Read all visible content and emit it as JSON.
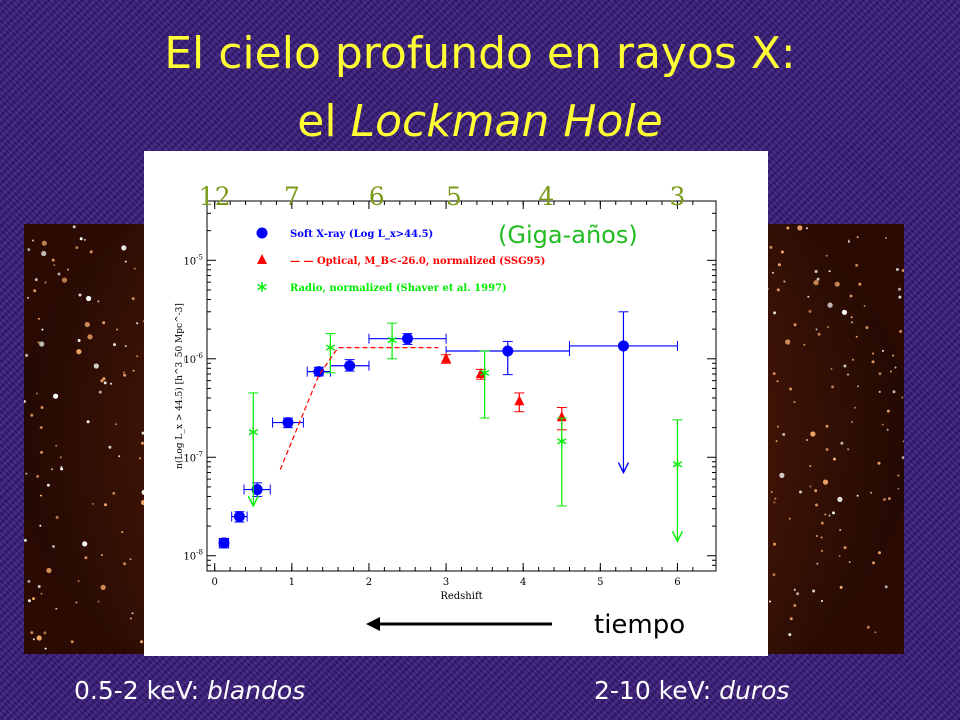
{
  "title": {
    "line1": "El cielo profundo en rayos X:",
    "line2_prefix": "el ",
    "line2_italic": "Lockman Hole"
  },
  "colors": {
    "title": "#ffff33",
    "background": "#3a1f7a",
    "soft": "#0000ff",
    "optical": "#ff0000",
    "radio": "#00ee00"
  },
  "bottom": {
    "left_prefix": "0.5-2 keV: ",
    "left_italic": "blandos",
    "right_prefix": "2-10 keV: ",
    "right_italic": "duros"
  },
  "chart_data": {
    "type": "scatter",
    "xlabel": "Redshift",
    "ylabel": "n(Log L_x > 44.5) [h^3_50 Mpc^-3]",
    "xlim": [
      -0.1,
      6.5
    ],
    "ylim": [
      7e-09,
      4e-05
    ],
    "yscale": "log",
    "x_ticks": [
      "0",
      "1",
      "2",
      "3",
      "4",
      "5",
      "6"
    ],
    "y_ticks": [
      "10^-8",
      "10^-7",
      "10^-6",
      "10^-5"
    ],
    "top_axis": {
      "label": "(Giga-años)",
      "ticks": [
        {
          "z": 0.0,
          "label": "12"
        },
        {
          "z": 1.0,
          "label": "7"
        },
        {
          "z": 2.1,
          "label": "6"
        },
        {
          "z": 3.1,
          "label": "5"
        },
        {
          "z": 4.3,
          "label": "4"
        },
        {
          "z": 6.0,
          "label": "3"
        }
      ]
    },
    "arrow_label": "tiempo",
    "legend": [
      {
        "marker": "circle",
        "color": "#0000ff",
        "label": "Soft X-ray (Log L_x>44.5)"
      },
      {
        "marker": "triangle",
        "color": "#ff0000",
        "label": "— — Optical, M_B<-26.0, normalized (SSG95)"
      },
      {
        "marker": "star",
        "color": "#00ee00",
        "label": "Radio, normalized (Shaver et al. 1997)"
      }
    ],
    "series": [
      {
        "name": "Soft X-ray (Log L_x>44.5)",
        "marker": "circle",
        "color": "#0000ff",
        "points": [
          {
            "x": 0.12,
            "y": 1.35e-08,
            "xerr": 0.06,
            "ylo": 1.2e-08,
            "yhi": 1.5e-08
          },
          {
            "x": 0.32,
            "y": 2.5e-08,
            "xerr": 0.1,
            "ylo": 2.2e-08,
            "yhi": 2.8e-08
          },
          {
            "x": 0.55,
            "y": 4.7e-08,
            "xerr": 0.17,
            "ylo": 4e-08,
            "yhi": 5.5e-08
          },
          {
            "x": 0.95,
            "y": 2.25e-07,
            "xerr": 0.2,
            "ylo": 2e-07,
            "yhi": 2.5e-07
          },
          {
            "x": 1.35,
            "y": 7.4e-07,
            "xerr": 0.15,
            "ylo": 6.7e-07,
            "yhi": 8.2e-07
          },
          {
            "x": 1.75,
            "y": 8.5e-07,
            "xerr": 0.25,
            "ylo": 7.5e-07,
            "yhi": 9.8e-07
          },
          {
            "x": 2.5,
            "y": 1.6e-06,
            "xerr": 0.5,
            "ylo": 1.4e-06,
            "yhi": 1.8e-06
          },
          {
            "x": 3.8,
            "y": 1.2e-06,
            "xerr": 0.8,
            "ylo": 6.9e-07,
            "yhi": 1.5e-06
          },
          {
            "x": 5.3,
            "y": 1.35e-06,
            "xerr": 0.7,
            "ylo": 7e-08,
            "yhi": 3e-06,
            "upper_limit_arrow": true
          }
        ]
      },
      {
        "name": "Optical, M_B<-26.0, normalized (SSG95)",
        "marker": "triangle",
        "color": "#ff0000",
        "points": [
          {
            "x": 3.0,
            "y": 1e-06,
            "ylo": 9e-07,
            "yhi": 1.1e-06
          },
          {
            "x": 3.45,
            "y": 7e-07,
            "ylo": 6.2e-07,
            "yhi": 7.8e-07
          },
          {
            "x": 3.95,
            "y": 3.7e-07,
            "ylo": 2.9e-07,
            "yhi": 4.5e-07
          },
          {
            "x": 4.5,
            "y": 2.55e-07,
            "ylo": 1.9e-07,
            "yhi": 3.2e-07
          }
        ]
      },
      {
        "name": "Radio, normalized (Shaver et al. 1997)",
        "marker": "star",
        "color": "#00ee00",
        "points": [
          {
            "x": 0.5,
            "y": 1.8e-07,
            "ylo": 3.2e-08,
            "yhi": 4.5e-07,
            "lower_arrow": true
          },
          {
            "x": 1.5,
            "y": 1.3e-06,
            "ylo": 7.2e-07,
            "yhi": 1.8e-06
          },
          {
            "x": 2.3,
            "y": 1.55e-06,
            "ylo": 1e-06,
            "yhi": 2.3e-06
          },
          {
            "x": 3.5,
            "y": 7.2e-07,
            "ylo": 2.5e-07,
            "yhi": 1.2e-06
          },
          {
            "x": 4.5,
            "y": 1.45e-07,
            "ylo": 3.2e-08,
            "yhi": 2.5e-07
          },
          {
            "x": 6.0,
            "y": 8.5e-08,
            "ylo": 1.4e-08,
            "yhi": 2.4e-07,
            "lower_arrow": true
          }
        ]
      },
      {
        "name": "Optical model",
        "style": "dashed",
        "color": "#ff0000",
        "points": [
          {
            "x": 0.85,
            "y": 7.5e-08
          },
          {
            "x": 1.35,
            "y": 6.8e-07
          },
          {
            "x": 1.6,
            "y": 1.3e-06
          },
          {
            "x": 2.9,
            "y": 1.3e-06
          }
        ]
      }
    ]
  }
}
